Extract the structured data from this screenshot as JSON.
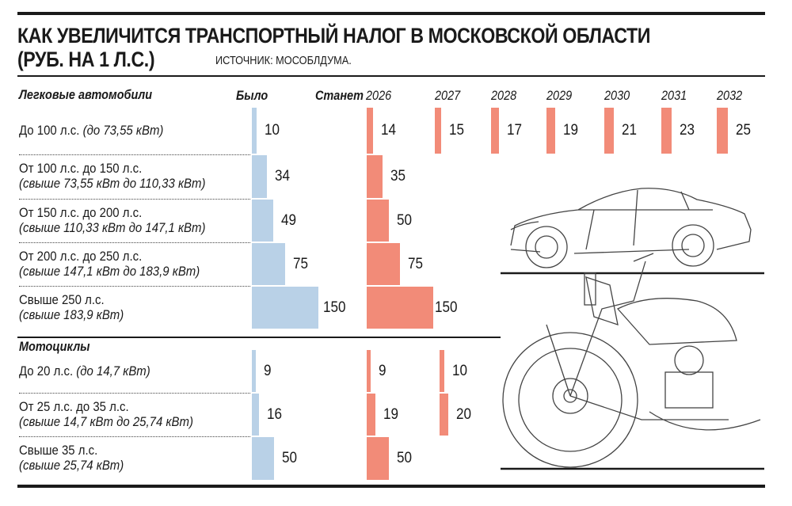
{
  "title_line1": "КАК УВЕЛИЧИТСЯ ТРАНСПОРТНЫЙ НАЛОГ В МОСКОВСКОЙ ОБЛАСТИ",
  "title_line2": "(РУБ. НА 1 Л.С.)",
  "source": "ИСТОЧНИК: МОСОБЛДУМА.",
  "colors": {
    "was": "#b9d1e7",
    "will": "#f28b78"
  },
  "chart_data": {
    "type": "table",
    "title": "КАК УВЕЛИЧИТСЯ ТРАНСПОРТНЫЙ НАЛОГ В МОСКОВСКОЙ ОБЛАСТИ (РУБ. НА 1 Л.С.)",
    "columns": {
      "was": "Было",
      "will": "Станет",
      "years": [
        "2026",
        "2027",
        "2028",
        "2029",
        "2030",
        "2031",
        "2032"
      ]
    },
    "sections": [
      {
        "name": "Легковые автомобили",
        "rows": [
          {
            "label": "До 100 л.с.",
            "sub": "(до 73,55 кВт)",
            "inline": true,
            "was": 10,
            "will": [
              14,
              15,
              17,
              19,
              21,
              23,
              25
            ]
          },
          {
            "label": "От 100 л.с. до 150 л.с.",
            "sub": "(свыше 73,55 кВт до 110,33 кВт)",
            "was": 34,
            "will": [
              35
            ]
          },
          {
            "label": "От 150 л.с. до 200 л.с.",
            "sub": "(свыше 110,33 кВт до 147,1 кВт)",
            "was": 49,
            "will": [
              50
            ]
          },
          {
            "label": "От 200 л.с. до 250 л.с.",
            "sub": "(свыше 147,1 кВт до 183,9 кВт)",
            "was": 75,
            "will": [
              75
            ]
          },
          {
            "label": "Свыше 250 л.с.",
            "sub": "(свыше 183,9 кВт)",
            "was": 150,
            "will": [
              150
            ]
          }
        ]
      },
      {
        "name": "Мотоциклы",
        "rows": [
          {
            "label": "До 20 л.с.",
            "sub": "(до 14,7 кВт)",
            "inline": true,
            "was": 9,
            "will": [
              9,
              10
            ]
          },
          {
            "label": "От 25 л.с. до 35 л.с.",
            "sub": "(свыше 14,7 кВт до 25,74 кВт)",
            "was": 16,
            "will": [
              19,
              20
            ]
          },
          {
            "label": "Свыше 35 л.с.",
            "sub": "(свыше 25,74 кВт)",
            "was": 50,
            "will": [
              50
            ]
          }
        ]
      }
    ]
  }
}
